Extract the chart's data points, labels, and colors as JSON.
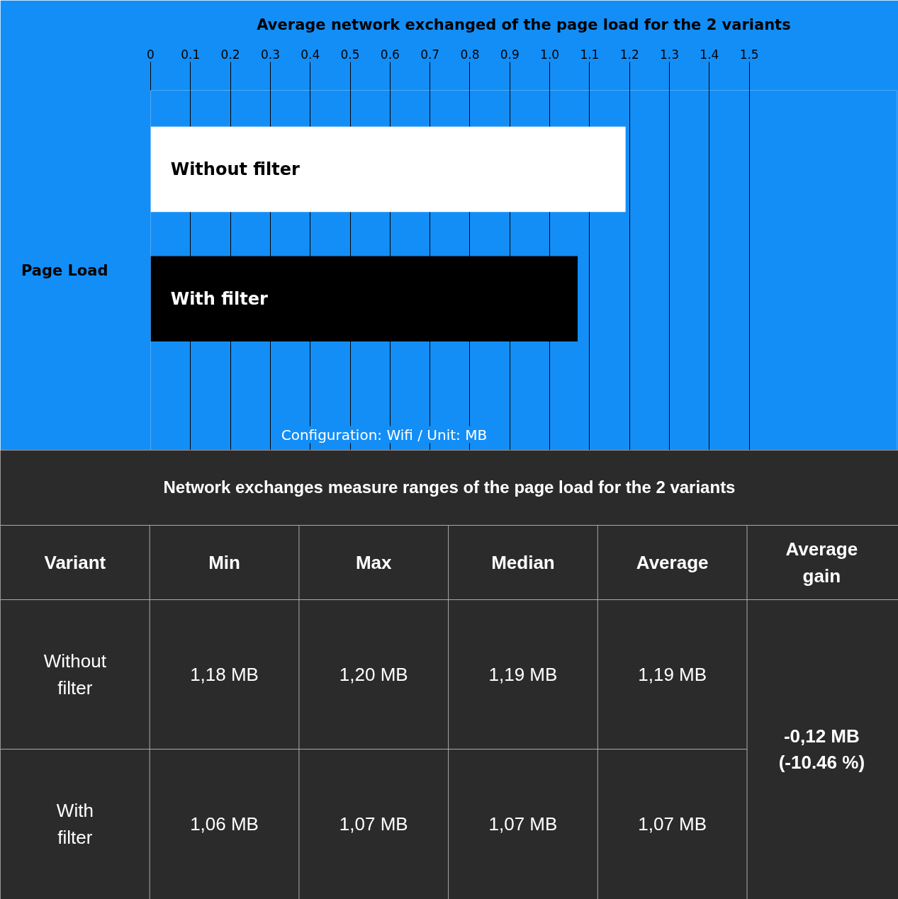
{
  "chart_data": [
    {
      "type": "bar",
      "title": "Average network exchanged of the page load for the 2 variants",
      "orientation": "horizontal",
      "ylabel": "Page Load",
      "categories": [
        "Without filter",
        "With filter"
      ],
      "values": [
        1.19,
        1.07
      ],
      "colors": [
        "#ffffff",
        "#000000"
      ],
      "xlim": [
        0,
        1.87
      ],
      "xticks": [
        0,
        0.1,
        0.2,
        0.3,
        0.4,
        0.5,
        0.6,
        0.7,
        0.8,
        0.9,
        {
          "value": 1.0,
          "label": "1.0"
        },
        1.1,
        1.2,
        1.3,
        1.4,
        1.5
      ],
      "grid": "x",
      "annotations": [
        "Configuration: Wifi / Unit: MB"
      ]
    },
    {
      "type": "other",
      "title": "Network exchanges measure ranges of the page load for the 2 variants",
      "annotations": [
        "Variant",
        "Min",
        "Max",
        "Median",
        "Average",
        "Average gain",
        "Without filter",
        "1,18 MB",
        "1,20 MB",
        "1,19 MB",
        "1,19 MB",
        "-0,12 MB (-10.46 %)",
        "With filter",
        "1,06 MB",
        "1,07 MB",
        "1,07 MB",
        "1,07 MB"
      ]
    }
  ]
}
